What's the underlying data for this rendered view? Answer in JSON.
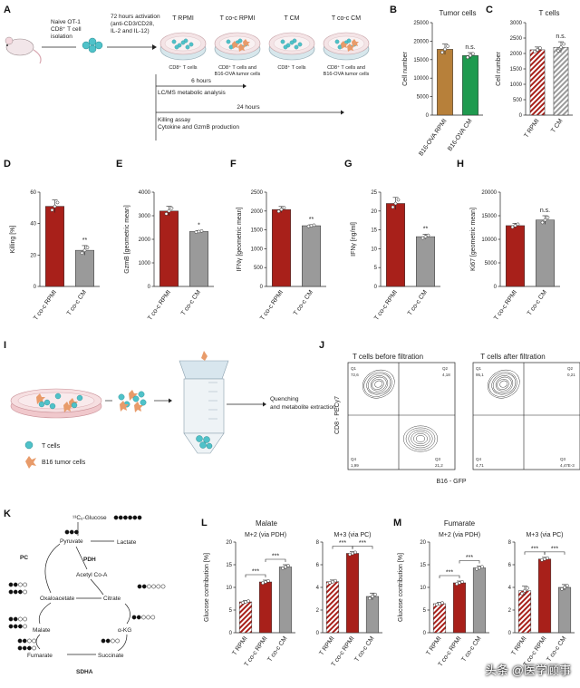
{
  "watermark": "头条 @医学顾事",
  "colors": {
    "red": "#a8201a",
    "gray": "#9a9a9a",
    "brown": "#b7803a",
    "green": "#1f9a4f",
    "teal": "#4fc2c9",
    "orange": "#e89b6a"
  },
  "panels": {
    "A": {
      "letter": "A",
      "naive_line1": "Naive OT-1",
      "naive_line2": "CD8⁺ T cell",
      "naive_line3": "isolation",
      "act_line1": "72 hours activation",
      "act_line2": "(anti-CD3/CD28,",
      "act_line3": "IL-2 and IL-12)",
      "t6": "6 hours",
      "lcms": "LC/MS metabolic analysis",
      "t24": "24 hours",
      "killing": "Killing assay",
      "cytokine": "Cytokine and GzmB production",
      "dishes": [
        {
          "title": "T RPMI",
          "caption": [
            "CD8⁺ T cells"
          ],
          "tumor": false
        },
        {
          "title": "T co-c RPMI",
          "caption": [
            "CD8⁺ T cells and",
            "B16-OVA tumor cells"
          ],
          "tumor": true
        },
        {
          "title": "T CM",
          "caption": [
            "CD8⁺ T cells"
          ],
          "tumor": false
        },
        {
          "title": "T co-c CM",
          "caption": [
            "CD8⁺ T cells and",
            "B16-OVA tumor cells"
          ],
          "tumor": true
        }
      ]
    },
    "I": {
      "letter": "I",
      "quench1": "Quenching",
      "quench2": "and metabolite extraction",
      "legend_t": "T cells",
      "legend_b16": "B16 tumor cells"
    },
    "J": {
      "letter": "J",
      "title_before": "T cells before filtration",
      "title_after": "T cells after filtration",
      "ylabel": "CD8 - PECy7",
      "xlabel": "B16 - GFP",
      "before": {
        "q1_label": "Q1",
        "q1": "72,6",
        "q2_label": "Q2",
        "q2": "4,18",
        "q3_label": "Q3",
        "q3": "21,2",
        "q4_label": "Q4",
        "q4": "1,99"
      },
      "after": {
        "q1_label": "Q1",
        "q1": "95,1",
        "q2_label": "Q2",
        "q2": "0,21",
        "q3_label": "Q3",
        "q3": "4,47E-3",
        "q4_label": "Q4",
        "q4": "4,71"
      }
    },
    "K": {
      "letter": "K",
      "glucose": "¹³C₆-Glucose",
      "pyruvate": "Pyruvate",
      "lactate": "Lactate",
      "pdh": "PDH",
      "acetylcoa": "Acetyl Co-A",
      "pc": "PC",
      "oxaloacetate": "Oxaloacetate",
      "citrate": "Citrate",
      "malate": "Malate",
      "akg": "α-KG",
      "fumarate": "Fumarate",
      "succinate": "Succinate",
      "sdha": "SDHA"
    },
    "L": {
      "letter": "L",
      "title": "Malate"
    },
    "M": {
      "letter": "M",
      "title": "Fumarate"
    }
  },
  "chart_data": [
    {
      "id": "B",
      "type": "bar",
      "title": "Tumor cells",
      "ylabel": "Cell number",
      "ylim": [
        0,
        25000
      ],
      "yticks": [
        0,
        5000,
        10000,
        15000,
        20000,
        25000
      ],
      "categories": [
        "B16-OVA RPMI",
        "B16-OVA CM"
      ],
      "values": [
        17800,
        16100
      ],
      "errors": [
        1400,
        800
      ],
      "fills": [
        "brown",
        "green"
      ],
      "sig": [
        {
          "label": "n.s.",
          "bar": 1
        }
      ]
    },
    {
      "id": "C",
      "type": "bar",
      "title": "T cells",
      "ylabel": "Cell number",
      "ylim": [
        0,
        3000
      ],
      "yticks": [
        0,
        500,
        1000,
        1500,
        2000,
        2500,
        3000
      ],
      "categories": [
        "T RPMI",
        "T CM"
      ],
      "values": [
        2120,
        2200
      ],
      "errors": [
        90,
        180
      ],
      "fills": [
        "hatch",
        "hatchg"
      ],
      "sig": [
        {
          "label": "n.s.",
          "bar": 1
        }
      ]
    },
    {
      "id": "D",
      "type": "bar",
      "title": "",
      "ylabel": "Killing [%]",
      "ylim": [
        0,
        60
      ],
      "yticks": [
        0,
        20,
        40,
        60
      ],
      "categories": [
        "T co-c RPMI",
        "T co-c CM"
      ],
      "values": [
        51,
        23
      ],
      "errors": [
        4,
        3
      ],
      "fills": [
        "red",
        "gray"
      ],
      "sig": [
        {
          "label": "**",
          "bar": 1
        }
      ]
    },
    {
      "id": "E",
      "type": "bar",
      "title": "",
      "ylabel": "GzmB [geometric mean]",
      "ylim": [
        0,
        4000
      ],
      "yticks": [
        0,
        1000,
        2000,
        3000,
        4000
      ],
      "categories": [
        "T co-c RPMI",
        "T co-c CM"
      ],
      "values": [
        3200,
        2330
      ],
      "errors": [
        200,
        40
      ],
      "fills": [
        "red",
        "gray"
      ],
      "sig": [
        {
          "label": "*",
          "bar": 1
        }
      ]
    },
    {
      "id": "F",
      "type": "bar",
      "title": "",
      "ylabel": "IFNγ [geometric mean]",
      "ylim": [
        0,
        2500
      ],
      "yticks": [
        0,
        500,
        1000,
        1500,
        2000,
        2500
      ],
      "categories": [
        "T co-c RPMI",
        "T co-c CM"
      ],
      "values": [
        2040,
        1610
      ],
      "errors": [
        80,
        25
      ],
      "fills": [
        "red",
        "gray"
      ],
      "sig": [
        {
          "label": "**",
          "bar": 1
        }
      ]
    },
    {
      "id": "G",
      "type": "bar",
      "title": "",
      "ylabel": "IFNγ [ng/ml]",
      "ylim": [
        0,
        25
      ],
      "yticks": [
        0,
        5,
        10,
        15,
        20,
        25
      ],
      "categories": [
        "T co-c RPMI",
        "T co-c CM"
      ],
      "values": [
        22,
        13.2
      ],
      "errors": [
        1.6,
        0.6
      ],
      "fills": [
        "red",
        "gray"
      ],
      "sig": [
        {
          "label": "**",
          "bar": 1
        }
      ]
    },
    {
      "id": "H",
      "type": "bar",
      "title": "",
      "ylabel": "Ki67 [geometric mean]",
      "ylim": [
        0,
        20000
      ],
      "yticks": [
        0,
        5000,
        10000,
        15000,
        20000
      ],
      "categories": [
        "T co-c RPMI",
        "T co-c CM"
      ],
      "values": [
        12900,
        14100
      ],
      "errors": [
        500,
        900
      ],
      "fills": [
        "red",
        "gray"
      ],
      "sig": [
        {
          "label": "n.s.",
          "bar": 1
        }
      ]
    },
    {
      "id": "L1",
      "type": "bar",
      "title": "M+2 (via PDH)",
      "ylabel": "Glucose contribution [%]",
      "ylim": [
        0,
        20
      ],
      "yticks": [
        0,
        5,
        10,
        15,
        20
      ],
      "categories": [
        "T RPMI",
        "T co-c RPMI",
        "T co-c CM"
      ],
      "values": [
        6.8,
        11.2,
        14.5
      ],
      "errors": [
        0.3,
        0.4,
        0.5
      ],
      "fills": [
        "hatch",
        "red",
        "gray"
      ],
      "brackets": [
        {
          "a": 0,
          "b": 1,
          "label": "***"
        },
        {
          "a": 1,
          "b": 2,
          "label": "***"
        }
      ]
    },
    {
      "id": "L2",
      "type": "bar",
      "title": "M+3 (via PC)",
      "ylabel": "",
      "ylim": [
        0,
        8
      ],
      "yticks": [
        0,
        2,
        4,
        6,
        8
      ],
      "categories": [
        "T RPMI",
        "T co-c RPMI",
        "T co-c CM"
      ],
      "values": [
        4.5,
        7.0,
        3.2
      ],
      "errors": [
        0.15,
        0.15,
        0.3
      ],
      "fills": [
        "hatch",
        "red",
        "gray"
      ],
      "brackets": [
        {
          "a": 0,
          "b": 1,
          "label": "***"
        },
        {
          "a": 1,
          "b": 2,
          "label": "***"
        }
      ]
    },
    {
      "id": "M1",
      "type": "bar",
      "title": "M+2 (via PDH)",
      "ylabel": "Glucose contribution [%]",
      "ylim": [
        0,
        20
      ],
      "yticks": [
        0,
        5,
        10,
        15,
        20
      ],
      "categories": [
        "T RPMI",
        "T co-c RPMI",
        "T co-c CM"
      ],
      "values": [
        6.4,
        11.0,
        14.3
      ],
      "errors": [
        0.3,
        0.4,
        0.4
      ],
      "fills": [
        "hatch",
        "red",
        "gray"
      ],
      "brackets": [
        {
          "a": 0,
          "b": 1,
          "label": "***"
        },
        {
          "a": 1,
          "b": 2,
          "label": "***"
        }
      ]
    },
    {
      "id": "M2",
      "type": "bar",
      "title": "M+3 (via PC)",
      "ylabel": "",
      "ylim": [
        0,
        8
      ],
      "yticks": [
        0,
        2,
        4,
        6,
        8
      ],
      "categories": [
        "T RPMI",
        "T co-c RPMI",
        "T co-c CM"
      ],
      "values": [
        3.7,
        6.5,
        4.0
      ],
      "errors": [
        0.4,
        0.15,
        0.25
      ],
      "fills": [
        "hatch",
        "red",
        "gray"
      ],
      "brackets": [
        {
          "a": 0,
          "b": 1,
          "label": "***"
        },
        {
          "a": 1,
          "b": 2,
          "label": "***"
        }
      ]
    }
  ]
}
